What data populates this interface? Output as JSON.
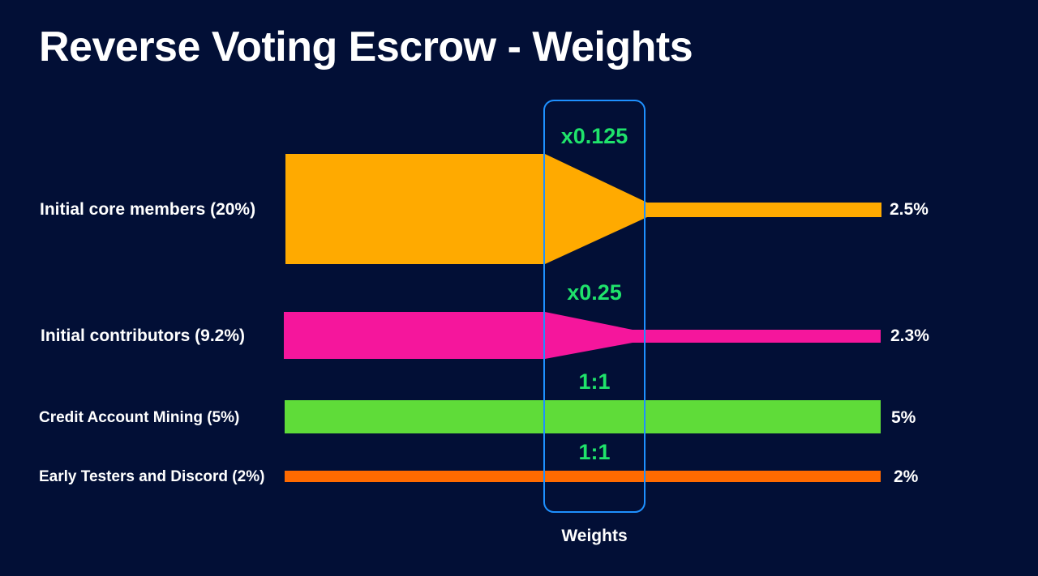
{
  "title": "Reverse Voting Escrow - Weights",
  "weights_caption": "Weights",
  "colors": {
    "background": "#020f36",
    "core": "#ffaa00",
    "contributors": "#f5169c",
    "mining": "#5fdc39",
    "testers": "#ff6a00",
    "weight_text": "#1fe36b",
    "frame": "#1e90ff"
  },
  "rows": [
    {
      "label": "Initial core members (20%)",
      "weight": "x0.125",
      "result": "2.5%"
    },
    {
      "label": "Initial contributors (9.2%)",
      "weight": "x0.25",
      "result": "2.3%"
    },
    {
      "label": "Credit Account Mining (5%)",
      "weight": "1:1",
      "result": "5%"
    },
    {
      "label": "Early Testers and Discord (2%)",
      "weight": "1:1",
      "result": "2%"
    }
  ]
}
